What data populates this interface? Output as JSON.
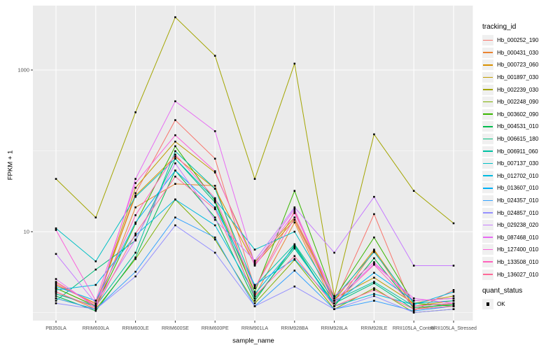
{
  "axis": {
    "y_title": "FPKM + 1",
    "x_title": "sample_name",
    "y_ticks": [
      {
        "label": "1000",
        "value": 1000
      },
      {
        "label": "10",
        "value": 10
      }
    ]
  },
  "legend": {
    "tracking_title": "tracking_id",
    "quant_title": "quant_status",
    "quant_items": [
      {
        "label": "OK"
      }
    ]
  },
  "colors": {
    "panel_background": "#ebebeb",
    "gridline": "#ffffff",
    "point": "#000000",
    "tick_text": "#4d4d4d",
    "legend_key_background": "#f0f0f0"
  },
  "chart_data": {
    "type": "line",
    "title": "",
    "xlabel": "sample_name",
    "ylabel": "FPKM + 1",
    "y_scale": "log10",
    "ylim": [
      0.9,
      6000
    ],
    "grid": true,
    "legend_position": "right",
    "point_shape": "filled-square",
    "quant_status_legend": [
      "OK"
    ],
    "categories": [
      "PB350LA",
      "RRIM600LA",
      "RRIM600LE",
      "RRIM600SE",
      "RRIM600PE",
      "RRIM901LA",
      "RRIM928BA",
      "RRIM928LA",
      "RRIM928LE",
      "RRII105LA_Control",
      "RRII105LA_Stressed"
    ],
    "series": [
      {
        "name": "Hb_000252_190",
        "color": "#F8766D",
        "values": [
          2.4,
          1.2,
          30,
          240,
          80,
          2.0,
          18,
          1.3,
          16.5,
          1.05,
          1.9
        ]
      },
      {
        "name": "Hb_000431_030",
        "color": "#EA8331",
        "values": [
          1.8,
          1.1,
          20,
          39,
          37,
          1.6,
          13,
          1.2,
          5.8,
          1.1,
          1.3
        ]
      },
      {
        "name": "Hb_000723_060",
        "color": "#D89000",
        "values": [
          2.2,
          1.3,
          28,
          85,
          34,
          3.9,
          14,
          1.4,
          6.0,
          1.2,
          1.4
        ]
      },
      {
        "name": "Hb_001897_030",
        "color": "#C09B00",
        "values": [
          2.0,
          1.2,
          35,
          130,
          54,
          4.2,
          15,
          1.5,
          2.7,
          1.3,
          1.6
        ]
      },
      {
        "name": "Hb_002239_030",
        "color": "#A3A500",
        "values": [
          45,
          15,
          300,
          4500,
          1500,
          45,
          1200,
          1.6,
          160,
          32,
          12.7
        ]
      },
      {
        "name": "Hb_002248_090",
        "color": "#7CAE00",
        "values": [
          1.5,
          1.1,
          4.6,
          25,
          8,
          1.3,
          4.5,
          1.1,
          2.0,
          1.0,
          1.1
        ]
      },
      {
        "name": "Hb_003602_090",
        "color": "#39B600",
        "values": [
          2.0,
          1.2,
          12.5,
          114,
          24,
          1.8,
          32,
          1.5,
          8.5,
          1.3,
          1.2
        ]
      },
      {
        "name": "Hb_004531_010",
        "color": "#00BB4E",
        "values": [
          1.6,
          1.05,
          4.8,
          57,
          15,
          1.4,
          6.8,
          1.2,
          4.7,
          1.15,
          1.25
        ]
      },
      {
        "name": "Hb_006615_180",
        "color": "#00BF7D",
        "values": [
          1.4,
          3.4,
          7.8,
          80,
          23,
          1.5,
          6.2,
          1.3,
          2.3,
          1.1,
          1.2
        ]
      },
      {
        "name": "Hb_006911_060",
        "color": "#00C1A3",
        "values": [
          1.7,
          1.2,
          5.5,
          99,
          34,
          2.1,
          7.0,
          1.4,
          2.4,
          1.2,
          1.3
        ]
      },
      {
        "name": "Hb_007137_030",
        "color": "#00BFC4",
        "values": [
          11,
          4.3,
          27,
          80,
          25,
          6.0,
          10,
          1.5,
          5.6,
          1.3,
          1.4
        ]
      },
      {
        "name": "Hb_012702_010",
        "color": "#00BAE0",
        "values": [
          1.9,
          2.2,
          9,
          25,
          12,
          1.7,
          6.5,
          1.2,
          1.7,
          1.25,
          1.8
        ]
      },
      {
        "name": "Hb_013607_010",
        "color": "#00B0F6",
        "values": [
          2.1,
          1.4,
          13,
          57,
          20,
          2.2,
          4.6,
          1.3,
          3.1,
          1.4,
          1.5
        ]
      },
      {
        "name": "Hb_024357_010",
        "color": "#35A2FF",
        "values": [
          1.5,
          1.1,
          3.2,
          15,
          8.5,
          1.2,
          3.3,
          1.1,
          1.4,
          1.05,
          1.2
        ]
      },
      {
        "name": "Hb_024857_010",
        "color": "#9590FF",
        "values": [
          1.3,
          1.1,
          2.8,
          12,
          5.5,
          1.2,
          2.1,
          1.1,
          1.6,
          1.0,
          1.1
        ]
      },
      {
        "name": "Hb_029238_020",
        "color": "#C77CFF",
        "values": [
          5.3,
          1.3,
          8,
          70,
          14,
          4.4,
          20,
          5.5,
          27,
          3.8,
          3.8
        ]
      },
      {
        "name": "Hb_087468_010",
        "color": "#E76BF3",
        "values": [
          2.6,
          1.15,
          45,
          410,
          175,
          4.0,
          19,
          1.4,
          4.0,
          1.5,
          1.3
        ]
      },
      {
        "name": "Hb_127400_010",
        "color": "#FA62DB",
        "values": [
          10.5,
          1.4,
          40,
          156,
          56,
          3.8,
          17,
          1.6,
          4.2,
          1.4,
          1.5
        ]
      },
      {
        "name": "Hb_133508_010",
        "color": "#FF62BC",
        "values": [
          2.3,
          1.25,
          16,
          90,
          26,
          2.0,
          15,
          1.3,
          3.9,
          1.2,
          1.3
        ]
      },
      {
        "name": "Hb_136027_010",
        "color": "#FF6A98",
        "values": [
          1.8,
          1.15,
          9.5,
          48,
          19,
          1.6,
          5.0,
          1.2,
          1.9,
          1.1,
          1.2
        ]
      }
    ]
  }
}
